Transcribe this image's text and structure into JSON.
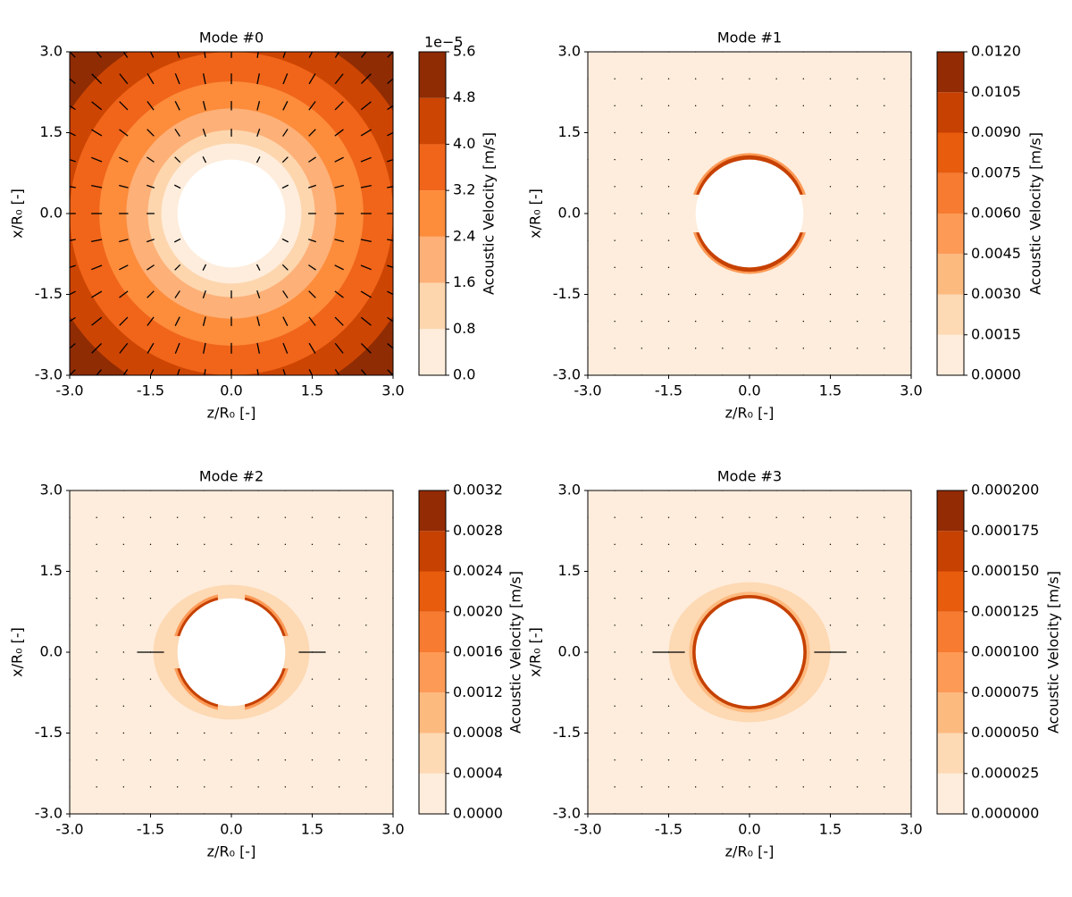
{
  "chart_data": [
    {
      "type": "contour",
      "title": "Mode #0",
      "xlabel": "z/R₀ [-]",
      "ylabel": "x/R₀ [-]",
      "xlim": [
        -3,
        3
      ],
      "ylim": [
        -3,
        3
      ],
      "xticks": [
        {
          "value": -3,
          "label": "-3.0"
        },
        -1.5,
        {
          "value": 0,
          "label": "0.0"
        },
        1.5,
        {
          "value": 3,
          "label": "3.0"
        }
      ],
      "yticks": [
        {
          "value": -3,
          "label": "-3.0"
        },
        -1.5,
        {
          "value": 0,
          "label": "0.0"
        },
        1.5,
        {
          "value": 3,
          "label": "3.0"
        }
      ],
      "colorbar": {
        "label": "Acoustic Velocity [m/s]",
        "offset_text": "1e−5",
        "clim": [
          0,
          5.6
        ],
        "ticks": [
          {
            "value": 0,
            "label": "0.0"
          },
          0.8,
          1.6,
          2.4,
          3.2,
          {
            "value": 4,
            "label": "4.0"
          },
          4.8,
          5.6
        ],
        "colors": [
          "#feeddc",
          "#fdd6ae",
          "#fdb077",
          "#fd8c3b",
          "#f0651a",
          "#cd4502",
          "#8f2c04"
        ]
      }
    },
    {
      "type": "contour",
      "title": "Mode #1",
      "xlabel": "z/R₀ [-]",
      "ylabel": "x/R₀ [-]",
      "xlim": [
        -3,
        3
      ],
      "ylim": [
        -3,
        3
      ],
      "xticks": [
        {
          "value": -3,
          "label": "-3.0"
        },
        -1.5,
        {
          "value": 0,
          "label": "0.0"
        },
        1.5,
        {
          "value": 3,
          "label": "3.0"
        }
      ],
      "yticks": [
        {
          "value": -3,
          "label": "-3.0"
        },
        -1.5,
        {
          "value": 0,
          "label": "0.0"
        },
        1.5,
        {
          "value": 3,
          "label": "3.0"
        }
      ],
      "colorbar": {
        "label": "Acoustic Velocity [m/s]",
        "clim": [
          0,
          0.012
        ],
        "ticks": [
          {
            "value": 0,
            "label": "0.0000"
          },
          {
            "value": 0.0015,
            "label": "0.0015"
          },
          {
            "value": 0.003,
            "label": "0.0030"
          },
          {
            "value": 0.0045,
            "label": "0.0045"
          },
          {
            "value": 0.006,
            "label": "0.0060"
          },
          {
            "value": 0.0075,
            "label": "0.0075"
          },
          {
            "value": 0.009,
            "label": "0.0090"
          },
          {
            "value": 0.0105,
            "label": "0.0105"
          },
          {
            "value": 0.012,
            "label": "0.0120"
          }
        ],
        "colors": [
          "#feeddc",
          "#fdd9b4",
          "#fdba7f",
          "#fd9a56",
          "#f77b30",
          "#e85c0d",
          "#c64102",
          "#932b04"
        ]
      }
    },
    {
      "type": "contour",
      "title": "Mode #2",
      "xlabel": "z/R₀ [-]",
      "ylabel": "x/R₀ [-]",
      "xlim": [
        -3,
        3
      ],
      "ylim": [
        -3,
        3
      ],
      "xticks": [
        {
          "value": -3,
          "label": "-3.0"
        },
        -1.5,
        {
          "value": 0,
          "label": "0.0"
        },
        1.5,
        {
          "value": 3,
          "label": "3.0"
        }
      ],
      "yticks": [
        {
          "value": -3,
          "label": "-3.0"
        },
        -1.5,
        {
          "value": 0,
          "label": "0.0"
        },
        1.5,
        {
          "value": 3,
          "label": "3.0"
        }
      ],
      "colorbar": {
        "label": "Acoustic Velocity [m/s]",
        "clim": [
          0,
          0.0032
        ],
        "ticks": [
          {
            "value": 0,
            "label": "0.0000"
          },
          0.0004,
          0.0008,
          0.0012,
          0.0016,
          {
            "value": 0.002,
            "label": "0.0020"
          },
          0.0024,
          0.0028,
          0.0032
        ],
        "colors": [
          "#feeddc",
          "#fdd9b4",
          "#fdba7f",
          "#fd9a56",
          "#f77b30",
          "#e85c0d",
          "#c64102",
          "#932b04"
        ]
      }
    },
    {
      "type": "contour",
      "title": "Mode #3",
      "xlabel": "z/R₀ [-]",
      "ylabel": "x/R₀ [-]",
      "xlim": [
        -3,
        3
      ],
      "ylim": [
        -3,
        3
      ],
      "xticks": [
        {
          "value": -3,
          "label": "-3.0"
        },
        -1.5,
        {
          "value": 0,
          "label": "0.0"
        },
        1.5,
        {
          "value": 3,
          "label": "3.0"
        }
      ],
      "yticks": [
        {
          "value": -3,
          "label": "-3.0"
        },
        -1.5,
        {
          "value": 0,
          "label": "0.0"
        },
        1.5,
        {
          "value": 3,
          "label": "3.0"
        }
      ],
      "colorbar": {
        "label": "Acoustic Velocity [m/s]",
        "clim": [
          0,
          0.0002
        ],
        "ticks": [
          {
            "value": 0,
            "label": "0.000000"
          },
          {
            "value": 2.5e-05,
            "label": "0.000025"
          },
          {
            "value": 5e-05,
            "label": "0.000050"
          },
          {
            "value": 7.5e-05,
            "label": "0.000075"
          },
          {
            "value": 0.0001,
            "label": "0.000100"
          },
          {
            "value": 0.000125,
            "label": "0.000125"
          },
          {
            "value": 0.00015,
            "label": "0.000150"
          },
          {
            "value": 0.000175,
            "label": "0.000175"
          },
          {
            "value": 0.0002,
            "label": "0.000200"
          }
        ],
        "colors": [
          "#feeddc",
          "#fdd9b4",
          "#fdba7f",
          "#fd9a56",
          "#f77b30",
          "#e85c0d",
          "#c64102",
          "#932b04"
        ]
      }
    }
  ]
}
